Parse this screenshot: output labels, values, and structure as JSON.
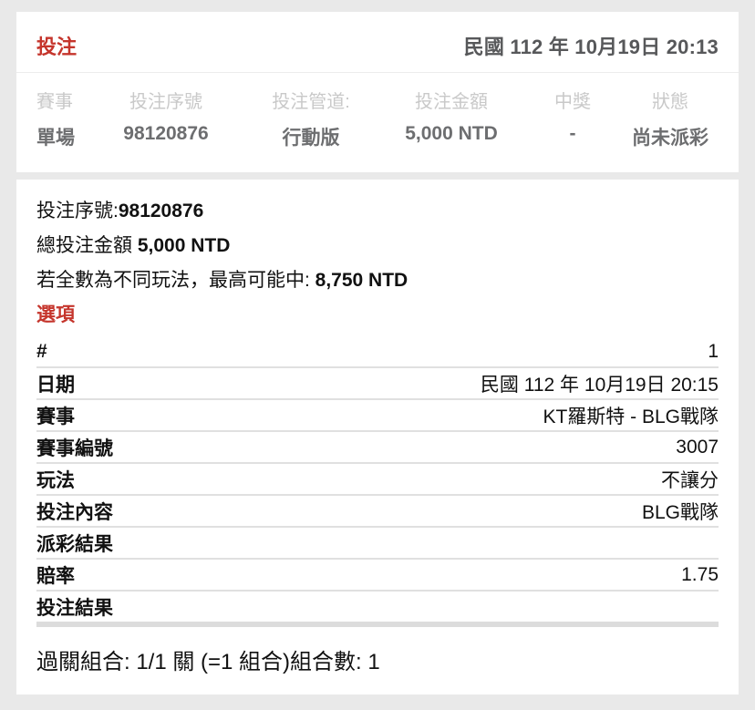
{
  "colors": {
    "accent_red": "#c5352c",
    "muted_gray": "#c9c9c9",
    "value_gray": "#6d6e70",
    "date_gray": "#57585a",
    "divider": "#e0e0e0",
    "divider_thick": "#dcdcdc",
    "page_bg": "#e9e9e9",
    "card_bg": "#ffffff",
    "text": "#111111"
  },
  "header": {
    "title": "投注",
    "datetime": "民國 112 年 10月19日 20:13"
  },
  "summary": {
    "columns": [
      {
        "label": "賽事",
        "value": "單場"
      },
      {
        "label": "投注序號",
        "value": "98120876"
      },
      {
        "label": "投注管道:",
        "value": "行動版"
      },
      {
        "label": "投注金額",
        "value": "5,000 NTD"
      },
      {
        "label": "中獎",
        "value": "-"
      },
      {
        "label": "狀態",
        "value": "尚未派彩"
      }
    ]
  },
  "detail": {
    "serial_label": "投注序號:",
    "serial_value": "98120876",
    "total_label": "總投注金額 ",
    "total_value": "5,000 NTD",
    "max_win_label": "若全數為不同玩法，最高可能中: ",
    "max_win_value": "8,750 NTD",
    "options_title": "選項",
    "rows": [
      {
        "label": "#",
        "value": "1"
      },
      {
        "label": "日期",
        "value": "民國 112 年 10月19日 20:15"
      },
      {
        "label": "賽事",
        "value": "KT羅斯特 - BLG戰隊"
      },
      {
        "label": "賽事編號",
        "value": "3007"
      },
      {
        "label": "玩法",
        "value": "不讓分"
      },
      {
        "label": "投注內容",
        "value": "BLG戰隊"
      },
      {
        "label": "派彩結果",
        "value": ""
      },
      {
        "label": "賠率",
        "value": "1.75"
      },
      {
        "label": "投注結果",
        "value": ""
      }
    ],
    "parlay_summary": "過關組合: 1/1 關 (=1 組合)組合數: 1"
  }
}
